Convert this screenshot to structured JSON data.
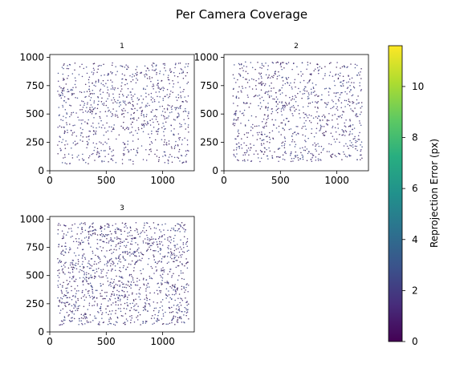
{
  "figure": {
    "title": "Per Camera Coverage"
  },
  "colors": {
    "point_dark": "#3b1f5a",
    "point_mid": "#46337e",
    "point_light": "#3e4a89",
    "axis": "#000000"
  },
  "colorbar": {
    "label": "Reprojection Error (px)",
    "min": 0,
    "max": 11.6,
    "ticks": [
      0,
      2,
      4,
      6,
      8,
      10
    ],
    "colormap": "viridis"
  },
  "chart_data": [
    {
      "type": "scatter",
      "title": "1",
      "xlim": [
        0,
        1280
      ],
      "ylim": [
        0,
        1024
      ],
      "xticks": [
        0,
        500,
        1000
      ],
      "yticks": [
        0,
        250,
        500,
        750,
        1000
      ],
      "points": 900,
      "x_range": [
        70,
        1230
      ],
      "y_range": [
        60,
        950
      ],
      "seed": 11
    },
    {
      "type": "scatter",
      "title": "2",
      "xlim": [
        0,
        1280
      ],
      "ylim": [
        0,
        1024
      ],
      "xticks": [
        0,
        500,
        1000
      ],
      "yticks": [
        0,
        250,
        500,
        750,
        1000
      ],
      "points": 900,
      "x_range": [
        80,
        1230
      ],
      "y_range": [
        80,
        960
      ],
      "seed": 22
    },
    {
      "type": "scatter",
      "title": "3",
      "xlim": [
        0,
        1280
      ],
      "ylim": [
        0,
        1024
      ],
      "xticks": [
        0,
        500,
        1000
      ],
      "yticks": [
        0,
        250,
        500,
        750,
        1000
      ],
      "points": 1300,
      "x_range": [
        70,
        1230
      ],
      "y_range": [
        60,
        970
      ],
      "seed": 33
    }
  ]
}
